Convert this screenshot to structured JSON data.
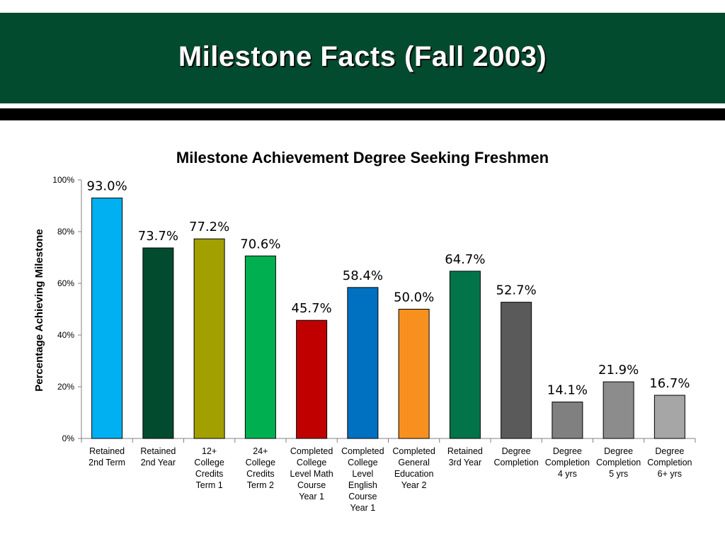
{
  "slide_title": "Milestone Facts (Fall 2003)",
  "chart_data": {
    "type": "bar",
    "title": "Milestone Achievement Degree Seeking Freshmen",
    "ylabel": "Percentage Achieving Milestone",
    "xlabel": "",
    "ylim": [
      0,
      100
    ],
    "yticks": [
      0,
      20,
      40,
      60,
      80,
      100
    ],
    "ytick_labels": [
      "0%",
      "20%",
      "40%",
      "60%",
      "80%",
      "100%"
    ],
    "grid": false,
    "legend": "none",
    "categories": [
      "Retained\n2nd Term",
      "Retained\n2nd Year",
      "12+\nCollege\nCredits\nTerm 1",
      "24+\nCollege\nCredits\nTerm 2",
      "Completed\nCollege\nLevel Math\nCourse\nYear 1",
      "Completed\nCollege\nLevel\nEnglish\nCourse\nYear 1",
      "Completed\nGeneral\nEducation\nYear 2",
      "Retained\n3rd Year",
      "Degree\nCompletion",
      "Degree\nCompletion\n4 yrs",
      "Degree\nCompletion\n5 yrs",
      "Degree\nCompletion\n6+ yrs"
    ],
    "values": [
      93.0,
      73.7,
      77.2,
      70.6,
      45.7,
      58.4,
      50.0,
      64.7,
      52.7,
      14.1,
      21.9,
      16.7
    ],
    "value_labels": [
      "93.0%",
      "73.7%",
      "77.2%",
      "70.6%",
      "45.7%",
      "58.4%",
      "50.0%",
      "64.7%",
      "52.7%",
      "14.1%",
      "21.9%",
      "16.7%"
    ],
    "colors": [
      "#00b0f0",
      "#034b2f",
      "#a29f00",
      "#00b050",
      "#c00000",
      "#0070c0",
      "#f7901e",
      "#03744a",
      "#5a5a5a",
      "#808080",
      "#8c8c8c",
      "#a6a6a6"
    ]
  }
}
